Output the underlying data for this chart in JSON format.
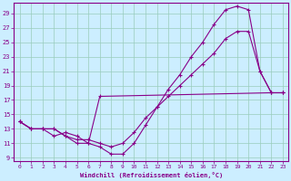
{
  "xlabel": "Windchill (Refroidissement éolien,°C)",
  "bg_color": "#cceeff",
  "line_color": "#880088",
  "grid_color": "#99ccbb",
  "xlim": [
    -0.5,
    23.5
  ],
  "ylim": [
    8.5,
    30.5
  ],
  "xticks": [
    0,
    1,
    2,
    3,
    4,
    5,
    6,
    7,
    8,
    9,
    10,
    11,
    12,
    13,
    14,
    15,
    16,
    17,
    18,
    19,
    20,
    21,
    22,
    23
  ],
  "yticks": [
    9,
    11,
    13,
    15,
    17,
    19,
    21,
    23,
    25,
    27,
    29
  ],
  "line1_x": [
    0,
    1,
    2,
    3,
    4,
    5,
    6,
    7,
    22,
    23
  ],
  "line1_y": [
    14,
    13,
    13,
    12,
    12.5,
    12,
    11,
    17.5,
    18,
    18
  ],
  "line2_x": [
    0,
    1,
    2,
    3,
    4,
    5,
    6,
    7,
    8,
    9,
    10,
    11,
    12,
    13,
    14,
    15,
    16,
    17,
    18,
    19,
    20,
    21,
    22,
    23
  ],
  "line2_y": [
    14,
    13,
    13,
    13,
    12,
    11,
    11,
    10.5,
    9.5,
    9.5,
    11,
    13.5,
    16,
    18.5,
    20.5,
    23,
    25,
    27.5,
    29.5,
    30,
    29.5,
    21,
    18,
    18
  ],
  "line3_x": [
    0,
    1,
    2,
    3,
    4,
    5,
    6,
    7,
    8,
    9,
    10,
    11,
    12,
    13,
    14,
    15,
    16,
    17,
    18,
    19,
    20,
    21,
    22,
    23
  ],
  "line3_y": [
    14,
    13,
    13,
    13,
    12,
    11.5,
    11.5,
    11,
    10.5,
    11,
    12.5,
    14.5,
    16,
    17.5,
    19,
    20.5,
    22,
    23.5,
    25.5,
    26.5,
    26.5,
    21,
    18,
    18
  ]
}
